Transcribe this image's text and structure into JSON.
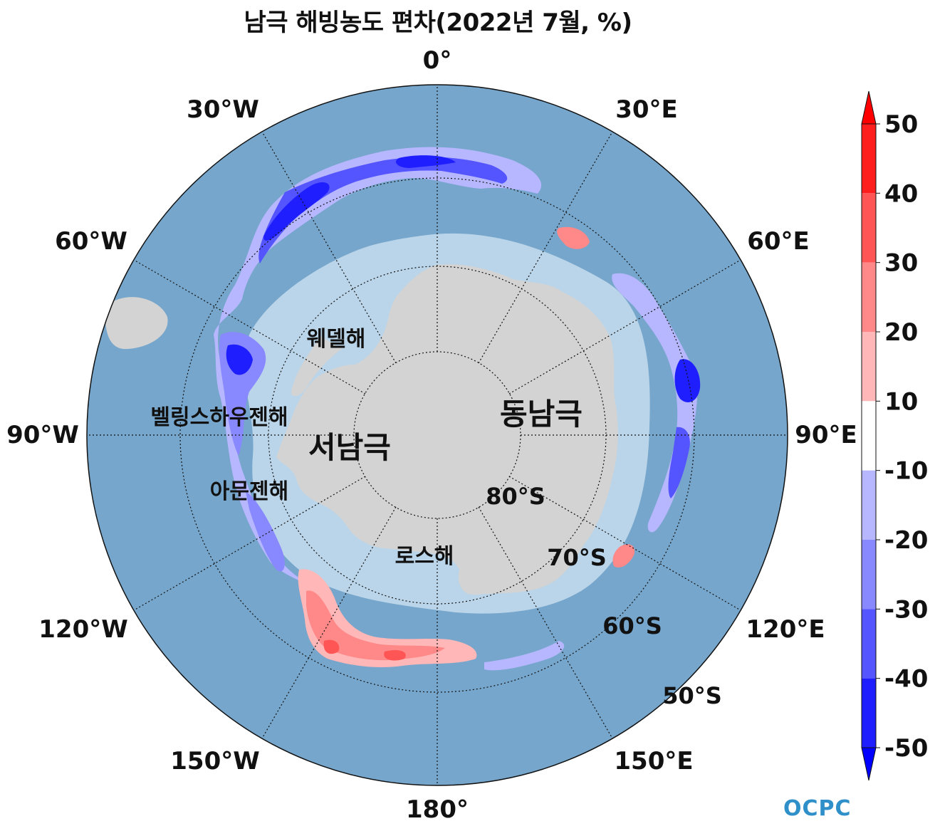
{
  "title": "남극 해빙농도 편차(2022년 7월, %)",
  "logo_text": "OCPC",
  "longitude_labels": [
    "0°",
    "30°E",
    "60°E",
    "90°E",
    "120°E",
    "150°E",
    "180°",
    "150°W",
    "120°W",
    "90°W",
    "60°W",
    "30°W"
  ],
  "latitude_labels": [
    "80°S",
    "70°S",
    "60°S",
    "50°S"
  ],
  "region_labels": {
    "weddell": "웨델해",
    "bellingshausen": "벨링스하우젠해",
    "amundsen": "아문젠해",
    "ross": "로스해",
    "west_antarctica": "서남극",
    "east_antarctica": "동남극"
  },
  "colorbar": {
    "ticks": [
      "50",
      "40",
      "30",
      "20",
      "10",
      "-10",
      "-20",
      "-30",
      "-40",
      "-50"
    ],
    "colors": [
      "#ff1e1e",
      "#ff5555",
      "#ff8888",
      "#ffb7b7",
      "#ffffff",
      "#b7b7ff",
      "#8888ff",
      "#5555ff",
      "#1e1eff"
    ],
    "extend_max_color": "#ff0000",
    "extend_min_color": "#0000ff"
  },
  "colors": {
    "ocean": "#76a6cb",
    "land": "#d3d3d3",
    "ice_edge": "#c6dff0"
  }
}
